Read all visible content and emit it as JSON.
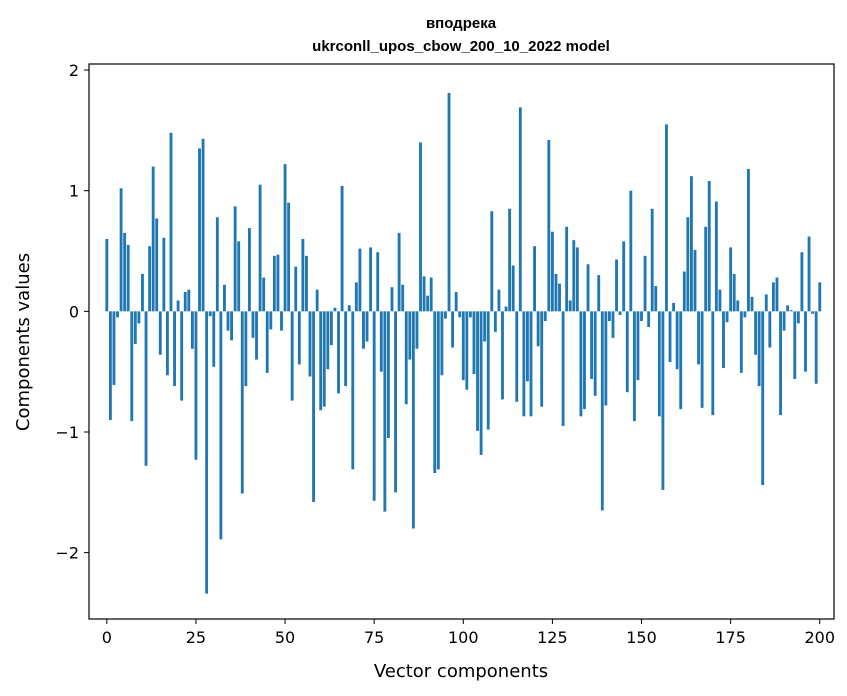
{
  "chart_data": {
    "type": "bar",
    "title_line1": "вподрека",
    "title_line2": "ukrconll_upos_cbow_200_10_2022 model",
    "xlabel": "Vector components",
    "ylabel": "Components values",
    "xlim": [
      -5,
      204
    ],
    "ylim": [
      -2.55,
      2.05
    ],
    "xticks": [
      0,
      25,
      50,
      75,
      100,
      125,
      150,
      175,
      200
    ],
    "yticks": [
      -2,
      -1,
      0,
      1,
      2
    ],
    "ytick_labels": [
      "−2",
      "−1",
      "0",
      "1",
      "2"
    ],
    "bar_color": "#1f77b4",
    "grid": false,
    "values": [
      0.6,
      -0.9,
      -0.61,
      -0.05,
      1.02,
      0.65,
      0.55,
      -0.91,
      -0.27,
      -0.1,
      0.31,
      -1.28,
      0.54,
      1.2,
      0.77,
      -0.36,
      0.61,
      -0.53,
      1.48,
      -0.62,
      0.09,
      -0.74,
      0.16,
      0.18,
      -0.31,
      -1.23,
      1.35,
      1.43,
      -2.34,
      -0.04,
      -0.46,
      0.78,
      -1.89,
      0.22,
      -0.16,
      -0.24,
      0.87,
      0.58,
      -1.51,
      -0.62,
      0.69,
      -0.22,
      -0.4,
      1.05,
      0.28,
      -0.51,
      -0.15,
      0.46,
      0.47,
      -0.16,
      1.22,
      0.9,
      -0.74,
      0.37,
      -0.44,
      0.6,
      0.46,
      -0.54,
      -1.58,
      0.18,
      -0.82,
      -0.79,
      -0.48,
      -0.28,
      0.03,
      -0.68,
      1.04,
      -0.62,
      0.05,
      -1.31,
      0.24,
      0.52,
      -0.31,
      -0.25,
      0.53,
      -1.57,
      0.49,
      -0.5,
      -1.66,
      -1.05,
      0.2,
      -1.5,
      0.65,
      0.22,
      -0.77,
      -0.4,
      -1.8,
      -0.31,
      1.4,
      0.29,
      0.13,
      0.28,
      -1.34,
      -1.31,
      -0.53,
      -0.06,
      1.81,
      -0.3,
      0.16,
      -0.05,
      -0.57,
      -0.65,
      -0.05,
      -0.52,
      -0.99,
      -1.19,
      -0.25,
      -0.98,
      0.83,
      -0.17,
      0.18,
      -0.73,
      0.04,
      0.85,
      0.38,
      -0.75,
      1.69,
      -0.87,
      -0.58,
      -0.87,
      0.54,
      -0.29,
      -0.79,
      -0.08,
      1.42,
      0.66,
      0.31,
      0.23,
      -0.95,
      0.7,
      0.09,
      0.59,
      0.53,
      -0.87,
      -0.81,
      0.39,
      -0.56,
      -0.7,
      0.3,
      -1.65,
      -0.78,
      -0.08,
      -0.22,
      0.43,
      -0.03,
      0.58,
      -0.67,
      1.0,
      -0.91,
      -0.57,
      -0.08,
      0.46,
      -0.13,
      0.85,
      0.21,
      -0.87,
      -1.48,
      1.55,
      -0.42,
      0.07,
      -0.48,
      -0.81,
      0.33,
      0.78,
      1.12,
      0.51,
      -0.44,
      -0.8,
      0.7,
      1.08,
      -0.86,
      0.91,
      0.18,
      -0.47,
      -0.09,
      0.53,
      0.31,
      0.09,
      -0.51,
      -0.05,
      1.18,
      0.12,
      -0.36,
      -0.62,
      -1.44,
      0.14,
      -0.3,
      0.24,
      0.28,
      -0.86,
      -0.16,
      0.05,
      0.01,
      -0.56,
      -0.1,
      0.49,
      -0.5,
      0.62,
      -0.02,
      -0.6,
      0.24
    ]
  }
}
